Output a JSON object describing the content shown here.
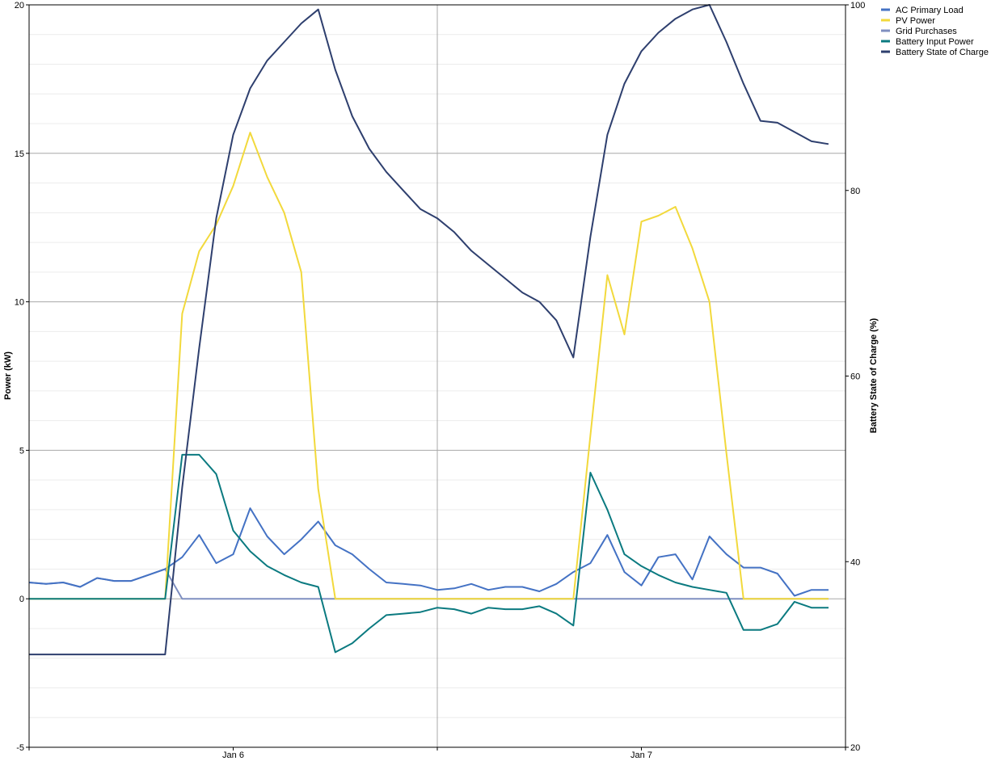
{
  "chart_data": {
    "type": "line",
    "x_tick_labels": [
      "Jan 6",
      "Jan 7"
    ],
    "left_axis": {
      "label": "Power (kW)",
      "ylim": [
        -5,
        20
      ],
      "ticks": [
        "-5",
        "0",
        "5",
        "10",
        "15",
        "20"
      ]
    },
    "right_axis": {
      "label": "Battery State of Charge (%)",
      "ylim": [
        20,
        100
      ],
      "ticks": [
        "20",
        "40",
        "60",
        "80",
        "100"
      ]
    },
    "grid": true,
    "legend_position": "top-right",
    "x_hours": [
      0,
      1,
      2,
      3,
      4,
      5,
      6,
      7,
      8,
      9,
      10,
      11,
      12,
      13,
      14,
      15,
      16,
      17,
      18,
      19,
      20,
      21,
      22,
      23,
      24,
      25,
      26,
      27,
      28,
      29,
      30,
      31,
      32,
      33,
      34,
      35,
      36,
      37,
      38,
      39,
      40,
      41,
      42,
      43,
      44,
      45,
      46,
      47
    ],
    "x_tick_hours": [
      12,
      36
    ],
    "series": [
      {
        "name": "AC Primary Load",
        "axis": "left",
        "color": "#4472C4",
        "values": [
          0.55,
          0.5,
          0.55,
          0.4,
          0.7,
          0.6,
          0.6,
          0.8,
          1.0,
          1.4,
          2.15,
          1.2,
          1.5,
          3.05,
          2.1,
          1.5,
          2.0,
          2.6,
          1.8,
          1.5,
          1.0,
          0.55,
          0.5,
          0.45,
          0.3,
          0.35,
          0.5,
          0.3,
          0.4,
          0.4,
          0.25,
          0.5,
          0.9,
          1.2,
          2.15,
          0.9,
          0.45,
          1.4,
          1.5,
          0.65,
          2.1,
          1.5,
          1.05,
          1.05,
          0.85,
          0.1,
          0.3,
          0.3
        ]
      },
      {
        "name": "PV Power",
        "axis": "left",
        "color": "#F2D93C",
        "values": [
          0,
          0,
          0,
          0,
          0,
          0,
          0,
          0,
          0,
          9.6,
          11.7,
          12.6,
          13.9,
          15.7,
          14.2,
          13.0,
          11.0,
          3.7,
          0,
          0,
          0,
          0,
          0,
          0,
          0,
          0,
          0,
          0,
          0,
          0,
          0,
          0,
          0,
          5.5,
          10.9,
          8.9,
          12.7,
          12.9,
          13.2,
          11.8,
          10.0,
          4.9,
          0,
          0,
          0,
          0,
          0,
          0
        ]
      },
      {
        "name": "Grid Purchases",
        "axis": "left",
        "color": "#7F8FC0",
        "values": [
          0.55,
          0.5,
          0.55,
          0.4,
          0.7,
          0.6,
          0.6,
          0.8,
          1.0,
          0,
          0,
          0,
          0,
          0,
          0,
          0,
          0,
          0,
          0,
          0,
          0,
          0,
          0,
          0,
          0,
          0,
          0,
          0,
          0,
          0,
          0,
          0,
          0,
          0,
          0,
          0,
          0,
          0,
          0,
          0,
          0,
          0,
          0,
          0,
          0,
          0,
          0,
          0
        ]
      },
      {
        "name": "Battery Input Power",
        "axis": "left",
        "color": "#0B7A80",
        "values": [
          0,
          0,
          0,
          0,
          0,
          0,
          0,
          0,
          0,
          4.85,
          4.85,
          4.2,
          2.3,
          1.6,
          1.1,
          0.8,
          0.55,
          0.4,
          -1.8,
          -1.5,
          -1.0,
          -0.55,
          -0.5,
          -0.45,
          -0.3,
          -0.35,
          -0.5,
          -0.3,
          -0.35,
          -0.35,
          -0.25,
          -0.5,
          -0.9,
          4.25,
          3.0,
          1.5,
          1.1,
          0.8,
          0.55,
          0.4,
          0.3,
          0.2,
          -1.05,
          -1.05,
          -0.85,
          -0.1,
          -0.3,
          -0.3
        ]
      },
      {
        "name": "Battery State of Charge",
        "axis": "right",
        "color": "#2E3F6E",
        "values": [
          30,
          30,
          30,
          30,
          30,
          30,
          30,
          30,
          30,
          48,
          63,
          77,
          86,
          91,
          94,
          96,
          98,
          99.5,
          93,
          88,
          84.5,
          82,
          80,
          78,
          77,
          75.5,
          73.5,
          72,
          70.5,
          69,
          68,
          66,
          62,
          75,
          86,
          91.5,
          95,
          97,
          98.5,
          99.5,
          100,
          96,
          91.5,
          87.5,
          87.3,
          86.3,
          85.3,
          85
        ]
      }
    ]
  }
}
